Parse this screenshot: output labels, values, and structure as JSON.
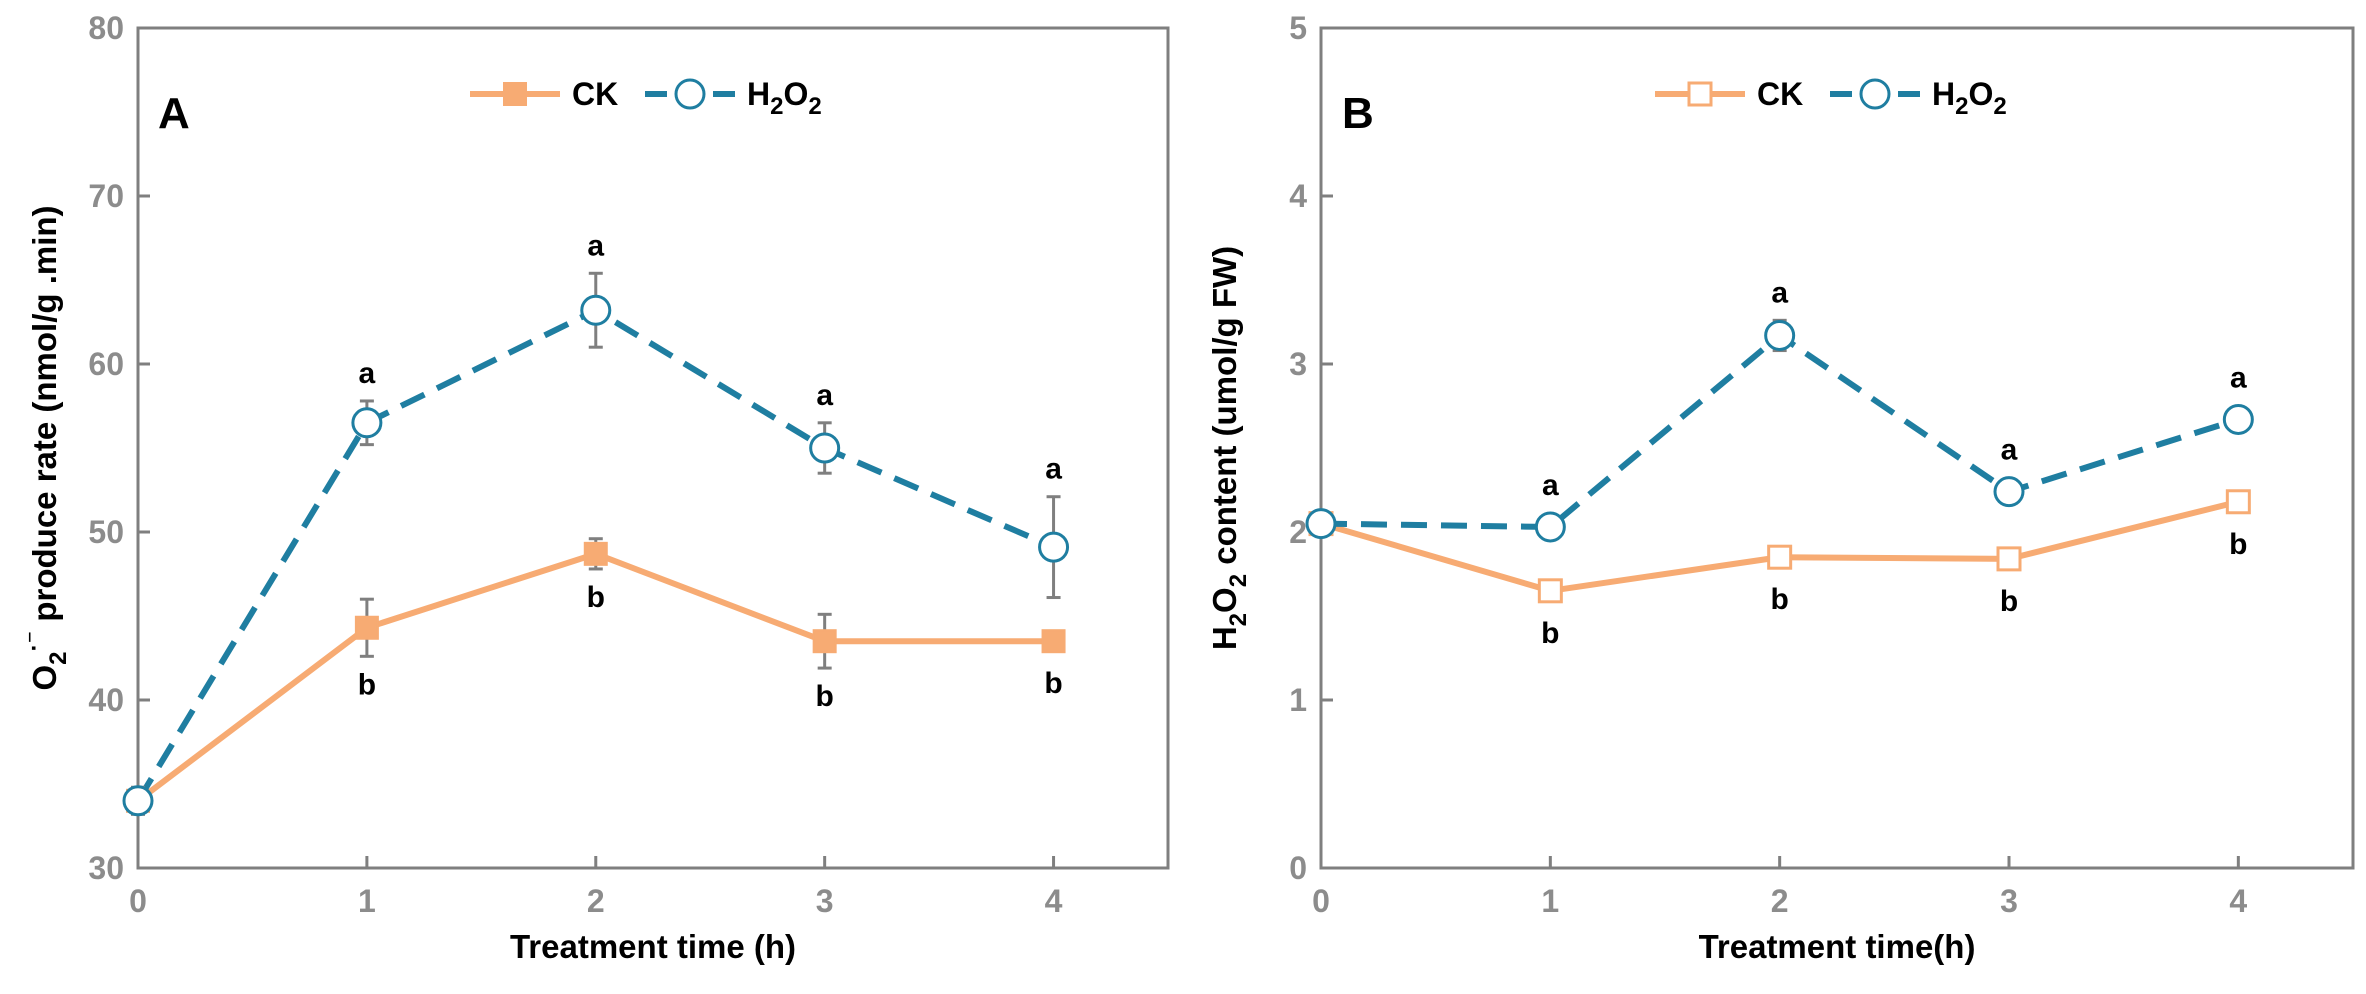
{
  "chart_data": [
    {
      "panel": "A",
      "type": "line",
      "x": [
        0,
        1,
        2,
        3,
        4
      ],
      "xlim": [
        0,
        4.5
      ],
      "ylim": [
        30,
        80
      ],
      "xticks": [
        "0",
        "1",
        "2",
        "3",
        "4"
      ],
      "yticks": [
        "30",
        "40",
        "50",
        "60",
        "70",
        "80"
      ],
      "xlabel": "Treatment time (h)",
      "ylabel_parts": {
        "a": "O",
        "sub": "2",
        "sup": "·⁻",
        "b": " produce rate (nmol/g .min)"
      },
      "series": [
        {
          "key": "ck",
          "name": "CK",
          "name_sub": "",
          "name_tail": "",
          "color": "#f7ab73",
          "marker": "square-filled",
          "values": [
            34,
            44.3,
            48.7,
            43.5,
            43.5
          ],
          "errors": [
            0.8,
            1.7,
            0.9,
            1.6,
            0.6
          ],
          "labels": [
            "",
            "b",
            "b",
            "b",
            "b"
          ]
        },
        {
          "key": "h2o2",
          "name": "H",
          "name_sub": "2",
          "name_tail": "O",
          "name_sub2": "2",
          "color": "#1f7ea1",
          "marker": "circle-open",
          "values": [
            34,
            56.5,
            63.2,
            55,
            49.1
          ],
          "errors": [
            0.8,
            1.3,
            2.2,
            1.5,
            3.0
          ],
          "labels": [
            "",
            "a",
            "a",
            "a",
            "a"
          ]
        }
      ]
    },
    {
      "panel": "B",
      "type": "line",
      "x": [
        0,
        1,
        2,
        3,
        4
      ],
      "xlim": [
        0,
        4.5
      ],
      "ylim": [
        0,
        5
      ],
      "xticks": [
        "0",
        "1",
        "2",
        "3",
        "4"
      ],
      "yticks": [
        "0",
        "1",
        "2",
        "3",
        "4",
        "5"
      ],
      "xlabel": "Treatment time(h)",
      "ylabel_parts": {
        "a": "H",
        "sub": "2",
        "mid": "O",
        "sub2": "2",
        "b": " content (umol/g FW)"
      },
      "series": [
        {
          "key": "ck",
          "name": "CK",
          "name_sub": "",
          "name_tail": "",
          "color": "#f7ab73",
          "marker": "square-open",
          "values": [
            2.05,
            1.65,
            1.85,
            1.84,
            2.18
          ],
          "errors": [
            0.04,
            0.05,
            0.05,
            0.05,
            0.06
          ],
          "labels": [
            "",
            "b",
            "b",
            "b",
            "b"
          ]
        },
        {
          "key": "h2o2",
          "name": "H",
          "name_sub": "2",
          "name_tail": "O",
          "name_sub2": "2",
          "color": "#1f7ea1",
          "marker": "circle-open",
          "values": [
            2.05,
            2.03,
            3.17,
            2.24,
            2.67
          ],
          "errors": [
            0.04,
            0.05,
            0.09,
            0.06,
            0.04
          ],
          "labels": [
            "",
            "a",
            "a",
            "a",
            "a"
          ]
        }
      ]
    }
  ]
}
